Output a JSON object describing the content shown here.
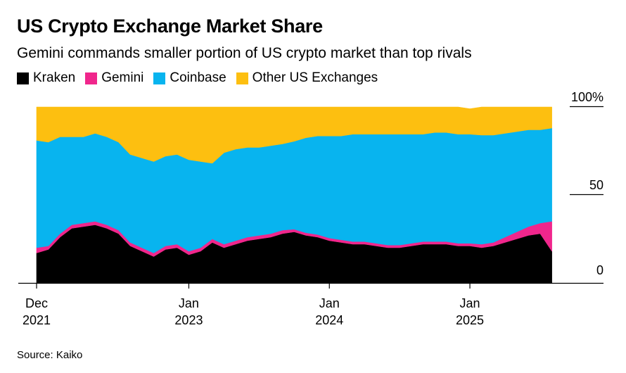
{
  "chart_data": {
    "type": "area",
    "stacked": true,
    "title": "US Crypto Exchange Market Share",
    "subtitle": "Gemini commands smaller portion of US crypto market than top rivals",
    "source": "Source: Kaiko",
    "ylim": [
      0,
      100
    ],
    "y_ticks": [
      {
        "value": 100,
        "label": "100%"
      },
      {
        "value": 50,
        "label": "50"
      },
      {
        "value": 0,
        "label": "0"
      }
    ],
    "x_ticks": [
      {
        "month_index": 0,
        "line1": "Dec",
        "line2": "2021"
      },
      {
        "month_index": 13,
        "line1": "Jan",
        "line2": "2023"
      },
      {
        "month_index": 25,
        "line1": "Jan",
        "line2": "2024"
      },
      {
        "month_index": 37,
        "line1": "Jan",
        "line2": "2025"
      }
    ],
    "x_range_months": [
      0,
      44.5
    ],
    "x": [
      0,
      1,
      2,
      3,
      4,
      5,
      6,
      7,
      8,
      9,
      10,
      11,
      12,
      13,
      14,
      15,
      16,
      17,
      18,
      19,
      20,
      21,
      22,
      23,
      24,
      25,
      26,
      27,
      28,
      29,
      30,
      31,
      32,
      33,
      34,
      35,
      36,
      37,
      38,
      39,
      40,
      41,
      42,
      43,
      44
    ],
    "series": [
      {
        "name": "Kraken",
        "color": "#000000",
        "values": [
          17,
          19,
          26,
          31,
          32,
          33,
          31,
          28,
          21,
          18,
          15,
          19,
          20,
          16,
          18,
          23,
          20,
          22,
          24,
          25,
          26,
          28,
          29,
          27,
          26,
          24,
          23,
          22,
          22,
          21,
          20,
          20,
          21,
          22,
          22,
          22,
          21,
          21,
          20,
          21,
          23,
          25,
          27,
          28,
          18
        ]
      },
      {
        "name": "Gemini",
        "color": "#f0268c",
        "values": [
          3,
          2,
          2,
          2,
          2,
          2,
          2,
          2,
          2,
          2,
          2,
          2,
          2,
          2,
          2,
          2,
          2,
          2,
          2,
          2,
          2,
          2,
          1.5,
          1.5,
          1.5,
          1.5,
          1.5,
          1.5,
          1.5,
          1.5,
          1.5,
          1.5,
          1.5,
          1.5,
          1.5,
          1.5,
          1.5,
          1.5,
          2,
          2,
          3,
          4,
          5,
          6,
          17
        ]
      },
      {
        "name": "Coinbase",
        "color": "#08b4ef",
        "values": [
          61,
          59,
          55,
          50,
          49,
          50,
          50,
          50,
          50,
          51,
          52,
          51,
          51,
          52,
          49,
          43,
          52,
          52,
          51,
          50,
          50,
          49,
          50,
          54,
          56,
          58,
          59,
          61,
          61,
          62,
          63,
          63,
          62,
          61,
          62,
          62,
          62,
          62,
          62,
          61,
          59,
          57,
          55,
          53,
          53
        ]
      },
      {
        "name": "Other US Exchanges",
        "color": "#fdbf10",
        "values": [
          19,
          20,
          17,
          17,
          17,
          15,
          17,
          20,
          27,
          29,
          31,
          28,
          27,
          30,
          31,
          32,
          26,
          24,
          23,
          23,
          22,
          21,
          19.5,
          17.5,
          16.5,
          16.5,
          16.5,
          15.5,
          15.5,
          15.5,
          15.5,
          15.5,
          15.5,
          15.5,
          14.5,
          14.5,
          15.5,
          14.5,
          16,
          16,
          15,
          14,
          13,
          13,
          12
        ]
      }
    ]
  }
}
